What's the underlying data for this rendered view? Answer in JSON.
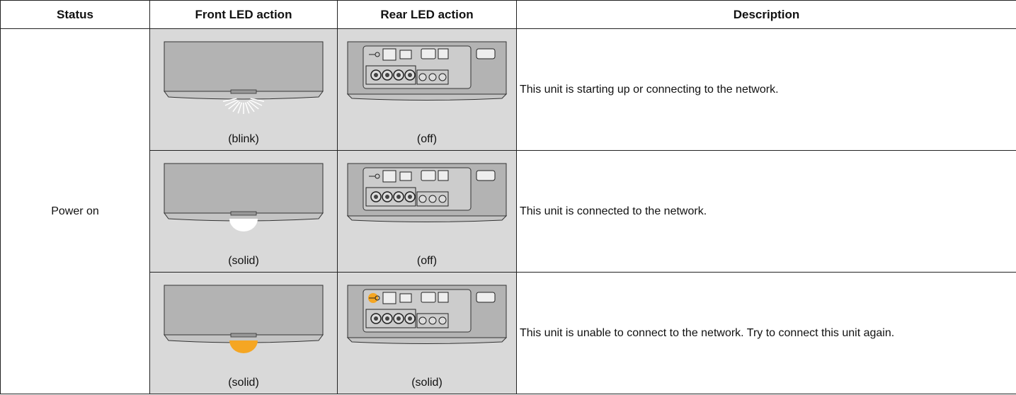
{
  "table": {
    "header": [
      "Status",
      "Front LED action",
      "Rear LED action",
      "Description"
    ],
    "status": "Power on",
    "rows": [
      {
        "front": "(blink)",
        "rear": "(off)",
        "description": "This unit is starting up or connecting to the network."
      },
      {
        "front": "(solid)",
        "rear": "(off)",
        "description": "This unit is connected to the network."
      },
      {
        "front": "(solid)",
        "rear": "(solid)",
        "description": "This unit is unable to connect to the network. Try to connect this unit again."
      }
    ]
  }
}
